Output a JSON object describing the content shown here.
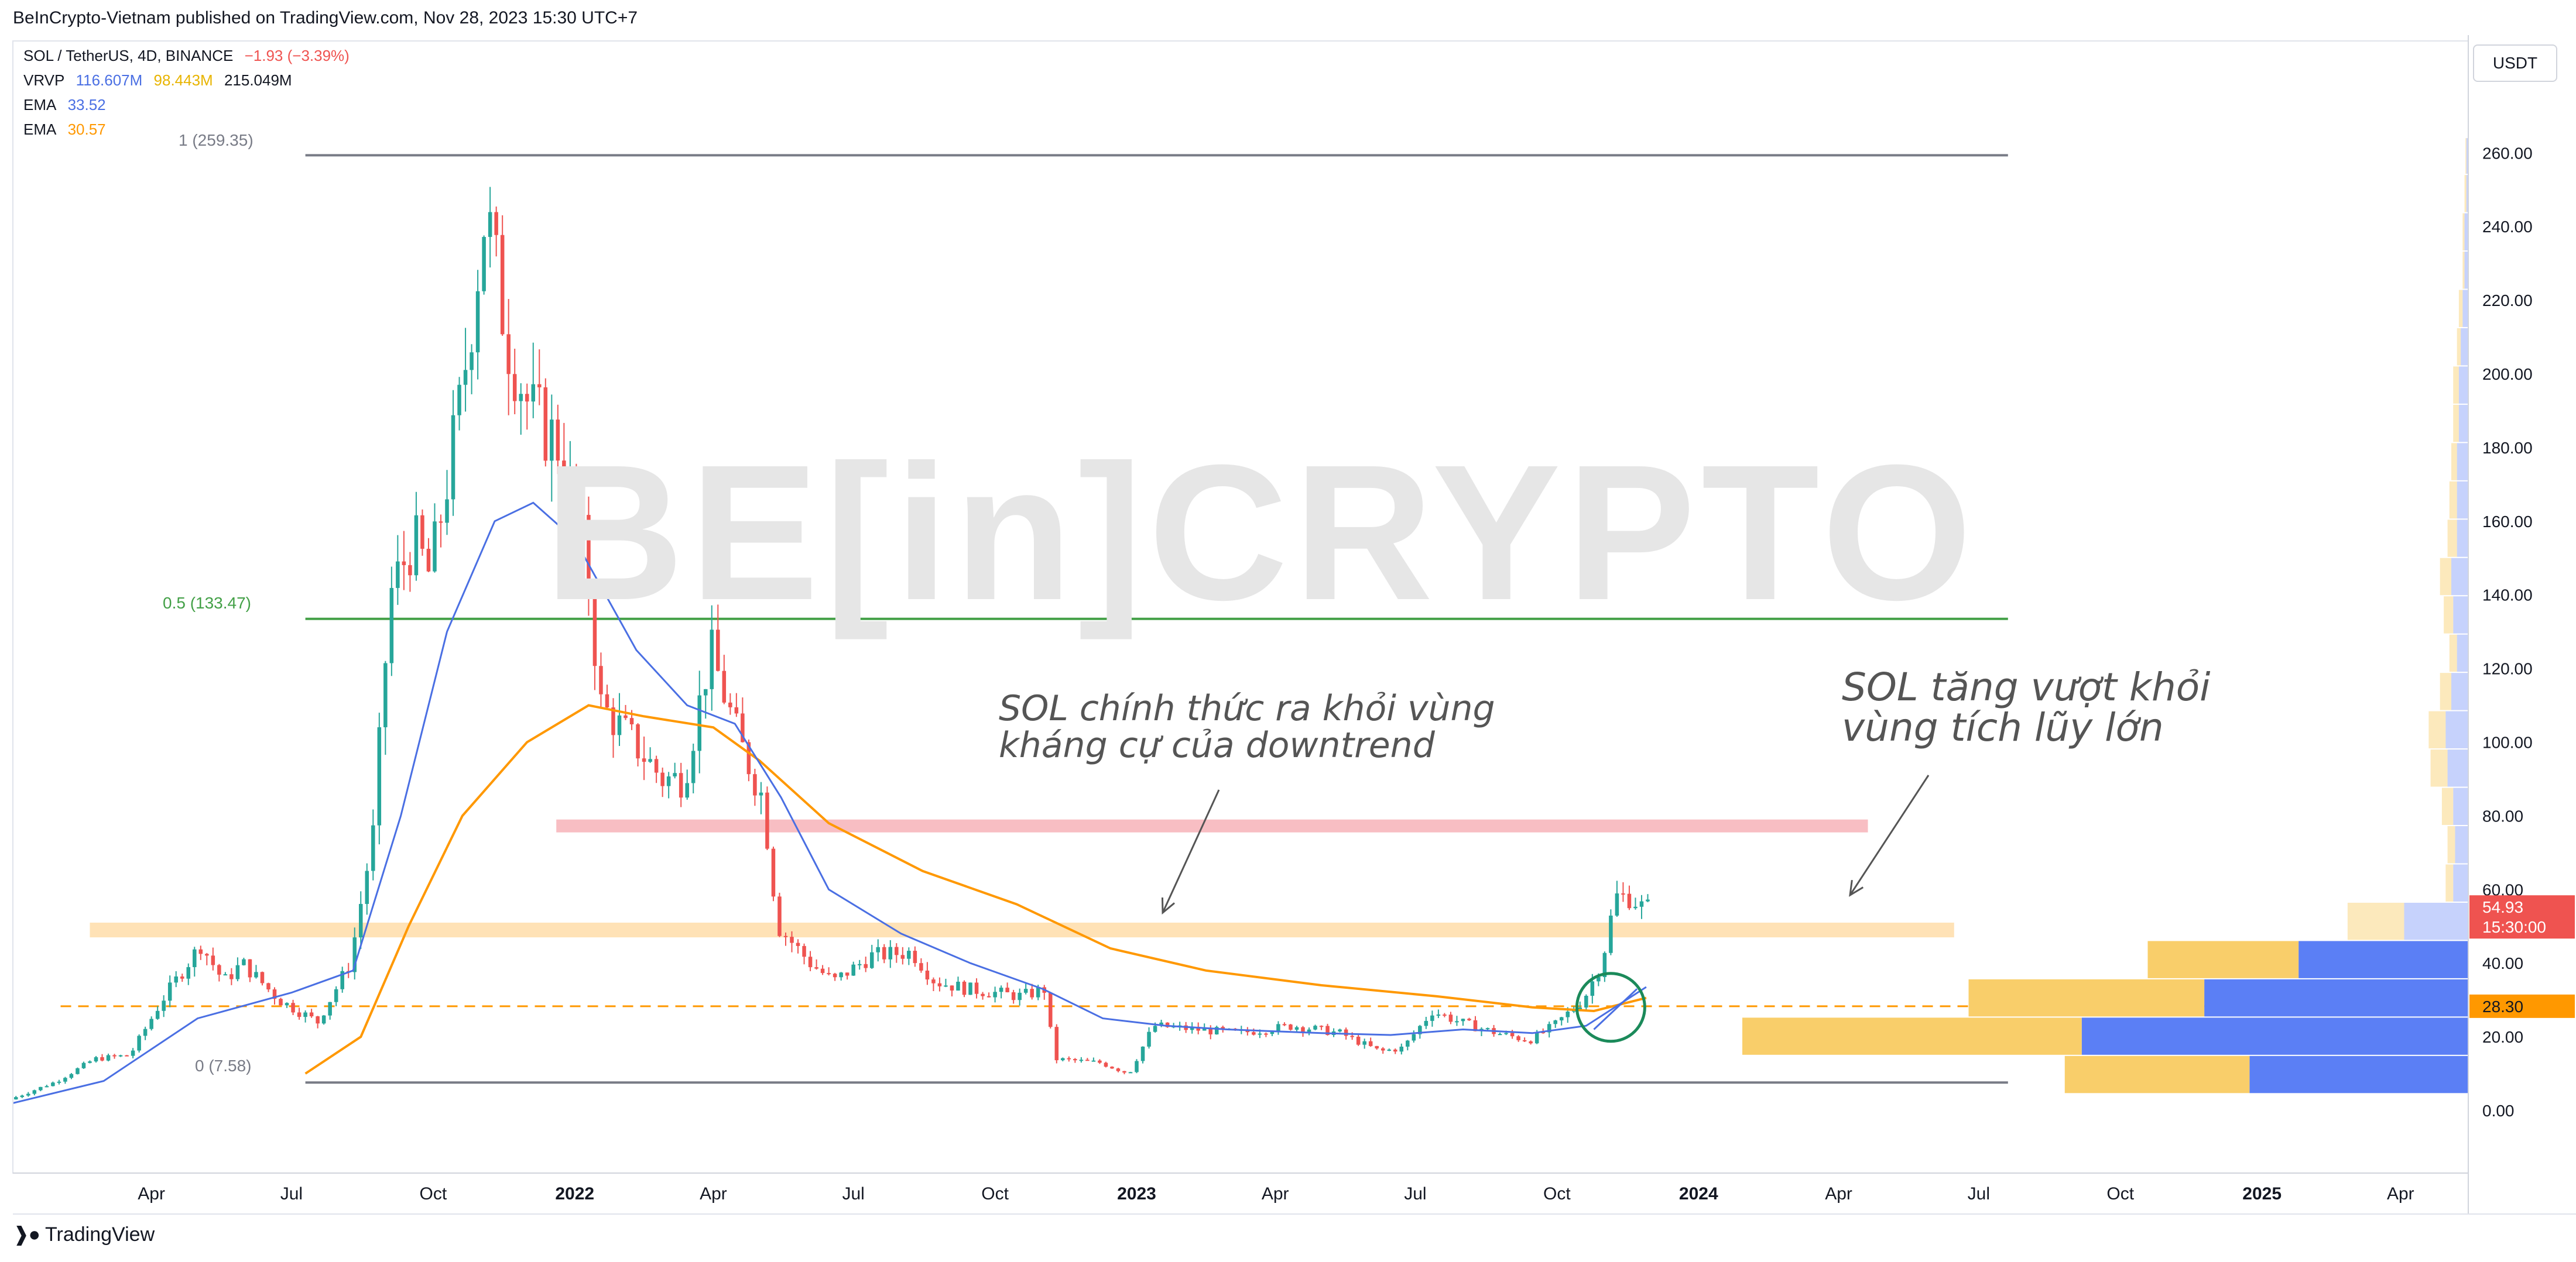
{
  "publisher_line": "BeInCrypto-Vietnam published on TradingView.com, Nov 28, 2023 15:30 UTC+7",
  "legend": {
    "symbol": "SOL / TetherUS, 4D, BINANCE",
    "change": "−1.93 (−3.39%)",
    "vrvp_label": "VRVP",
    "vrvp_v1": "116.607M",
    "vrvp_v2": "98.443M",
    "vrvp_v3": "215.049M",
    "ema1_label": "EMA",
    "ema1_value": "33.52",
    "ema2_label": "EMA",
    "ema2_value": "30.57"
  },
  "currency_button": "USDT",
  "watermark": "BE[in]CRYPTO",
  "footer_brand": "TradingView",
  "fib": {
    "top_label": "1 (259.35)",
    "mid_label": "0.5 (133.47)",
    "bottom_label": "0 (7.58)"
  },
  "annotations": {
    "left_line1": "SOL chính thức ra khỏi vùng",
    "left_line2": "kháng cự của downtrend",
    "right_line1": "SOL tăng vượt khỏi",
    "right_line2": "vùng tích lũy lớn"
  },
  "price_tags": {
    "last_price": "54.93",
    "countdown": "15:30:00",
    "level": "28.30"
  },
  "colors": {
    "up": "#26a69a",
    "down": "#ef5350",
    "ema_fast": "#4a6fe3",
    "ema_slow": "#ff9800",
    "fib": "#787b86",
    "fib_mid": "#43a047",
    "zone_pink": "#f8bbc0",
    "zone_orange": "#ffe0b2",
    "vol_up": "#5b7ff5",
    "vol_down": "#f9ce6a"
  },
  "chart_data": {
    "type": "candlestick",
    "title": "SOL / TetherUS, 4D, BINANCE",
    "ylabel": "USDT",
    "ylim": [
      -10,
      270
    ],
    "y_ticks": [
      0,
      20,
      40,
      60,
      80,
      100,
      120,
      140,
      160,
      180,
      200,
      220,
      240,
      260
    ],
    "y_tick_labels": [
      "0.00",
      "20.00",
      "40.00",
      "60.00",
      "80.00",
      "100.00",
      "120.00",
      "140.00",
      "160.00",
      "180.00",
      "200.00",
      "220.00",
      "240.00",
      "260.00"
    ],
    "x_ticks": [
      "2021-04-01",
      "2021-07-01",
      "2021-10-01",
      "2022-01-01",
      "2022-04-01",
      "2022-07-01",
      "2022-10-01",
      "2023-01-01",
      "2023-04-01",
      "2023-07-01",
      "2023-10-01",
      "2024-01-01",
      "2024-04-01",
      "2024-07-01",
      "2024-10-01",
      "2025-01-01",
      "2025-04-01"
    ],
    "x_tick_labels": [
      "Apr",
      "Jul",
      "Oct",
      "2022",
      "Apr",
      "Jul",
      "Oct",
      "2023",
      "Apr",
      "Jul",
      "Oct",
      "2024",
      "Apr",
      "Jul",
      "Oct",
      "2025",
      "Apr"
    ],
    "xlim": [
      "2021-01-01",
      "2025-05-15"
    ],
    "price_path": [
      [
        "2021-01-01",
        3.0
      ],
      [
        "2021-02-01",
        8.0
      ],
      [
        "2021-02-25",
        14.0
      ],
      [
        "2021-03-20",
        15.0
      ],
      [
        "2021-04-10",
        30.0
      ],
      [
        "2021-05-05",
        45.0
      ],
      [
        "2021-05-20",
        35.0
      ],
      [
        "2021-06-01",
        40.0
      ],
      [
        "2021-06-25",
        30.0
      ],
      [
        "2021-07-20",
        24.0
      ],
      [
        "2021-08-10",
        40.0
      ],
      [
        "2021-08-25",
        75.0
      ],
      [
        "2021-09-05",
        140.0
      ],
      [
        "2021-09-20",
        155.0
      ],
      [
        "2021-10-01",
        145.0
      ],
      [
        "2021-10-20",
        190.0
      ],
      [
        "2021-11-06",
        245.0
      ],
      [
        "2021-11-20",
        210.0
      ],
      [
        "2021-12-05",
        190.0
      ],
      [
        "2021-12-25",
        180.0
      ],
      [
        "2022-01-10",
        150.0
      ],
      [
        "2022-01-20",
        110.0
      ],
      [
        "2022-02-10",
        100.0
      ],
      [
        "2022-03-01",
        90.0
      ],
      [
        "2022-03-15",
        90.0
      ],
      [
        "2022-04-01",
        125.0
      ],
      [
        "2022-04-20",
        100.0
      ],
      [
        "2022-05-05",
        85.0
      ],
      [
        "2022-05-15",
        50.0
      ],
      [
        "2022-06-05",
        40.0
      ],
      [
        "2022-06-20",
        35.0
      ],
      [
        "2022-07-15",
        42.0
      ],
      [
        "2022-08-10",
        43.0
      ],
      [
        "2022-08-25",
        35.0
      ],
      [
        "2022-09-15",
        33.0
      ],
      [
        "2022-10-20",
        31.0
      ],
      [
        "2022-11-05",
        33.0
      ],
      [
        "2022-11-10",
        14.0
      ],
      [
        "2022-12-10",
        13.0
      ],
      [
        "2022-12-29",
        10.0
      ],
      [
        "2023-01-14",
        23.0
      ],
      [
        "2023-02-10",
        22.0
      ],
      [
        "2023-03-10",
        21.0
      ],
      [
        "2023-04-15",
        23.0
      ],
      [
        "2023-05-15",
        21.0
      ],
      [
        "2023-06-10",
        16.0
      ],
      [
        "2023-06-25",
        17.0
      ],
      [
        "2023-07-14",
        27.0
      ],
      [
        "2023-08-01",
        24.0
      ],
      [
        "2023-08-25",
        21.0
      ],
      [
        "2023-09-15",
        19.0
      ],
      [
        "2023-10-01",
        23.0
      ],
      [
        "2023-10-20",
        30.0
      ],
      [
        "2023-11-01",
        40.0
      ],
      [
        "2023-11-10",
        58.0
      ],
      [
        "2023-11-20",
        58.0
      ],
      [
        "2023-11-28",
        54.93
      ]
    ],
    "ema_fast_path": [
      [
        "2021-01-01",
        2.0
      ],
      [
        "2021-03-01",
        8.0
      ],
      [
        "2021-05-01",
        25.0
      ],
      [
        "2021-07-01",
        32.0
      ],
      [
        "2021-08-10",
        38.0
      ],
      [
        "2021-09-10",
        80.0
      ],
      [
        "2021-10-10",
        130.0
      ],
      [
        "2021-11-10",
        160.0
      ],
      [
        "2021-12-05",
        165.0
      ],
      [
        "2022-01-01",
        155.0
      ],
      [
        "2022-02-10",
        125.0
      ],
      [
        "2022-03-15",
        110.0
      ],
      [
        "2022-04-15",
        105.0
      ],
      [
        "2022-05-15",
        85.0
      ],
      [
        "2022-06-15",
        60.0
      ],
      [
        "2022-08-01",
        48.0
      ],
      [
        "2022-09-15",
        40.0
      ],
      [
        "2022-11-01",
        33.0
      ],
      [
        "2022-12-10",
        25.0
      ],
      [
        "2023-01-20",
        23.0
      ],
      [
        "2023-03-01",
        22.0
      ],
      [
        "2023-05-01",
        21.0
      ],
      [
        "2023-06-15",
        20.5
      ],
      [
        "2023-08-01",
        22.0
      ],
      [
        "2023-09-15",
        21.0
      ],
      [
        "2023-10-20",
        23.0
      ],
      [
        "2023-11-28",
        33.52
      ]
    ],
    "ema_slow_path": [
      [
        "2021-07-10",
        10.0
      ],
      [
        "2021-08-15",
        20.0
      ],
      [
        "2021-09-15",
        50.0
      ],
      [
        "2021-10-20",
        80.0
      ],
      [
        "2021-12-01",
        100.0
      ],
      [
        "2022-01-10",
        110.0
      ],
      [
        "2022-02-15",
        107.0
      ],
      [
        "2022-04-01",
        104.0
      ],
      [
        "2022-05-01",
        95.0
      ],
      [
        "2022-06-15",
        78.0
      ],
      [
        "2022-08-15",
        65.0
      ],
      [
        "2022-10-15",
        56.0
      ],
      [
        "2022-12-15",
        44.0
      ],
      [
        "2023-02-15",
        38.0
      ],
      [
        "2023-05-01",
        34.0
      ],
      [
        "2023-07-15",
        31.0
      ],
      [
        "2023-09-15",
        28.0
      ],
      [
        "2023-10-25",
        27.0
      ],
      [
        "2023-11-28",
        30.57
      ]
    ],
    "fib_levels": [
      {
        "ratio": "1",
        "value": 259.35
      },
      {
        "ratio": "0.5",
        "value": 133.47
      },
      {
        "ratio": "0",
        "value": 7.58
      }
    ],
    "fib_x_range": [
      "2021-07-10",
      "2024-07-20"
    ],
    "zones": [
      {
        "name": "resistance-zone",
        "y0": 47.0,
        "y1": 51.0,
        "x0": "2021-02-20",
        "x1": "2024-06-15"
      },
      {
        "name": "downtrend-resistance",
        "y0": 75.5,
        "y1": 79.0,
        "x0": "2021-12-20",
        "x1": "2024-04-20"
      }
    ],
    "dashed_level": {
      "value": 28.3,
      "x0": "2021-02-01",
      "x1": "2024-02-01"
    },
    "circle": {
      "x": "2023-11-05",
      "y": 28.0
    },
    "volume_profile": [
      {
        "lo": 4.4,
        "hi": 14.8,
        "up": 116,
        "down": 98
      },
      {
        "lo": 14.8,
        "hi": 25.2,
        "up": 205,
        "down": 180
      },
      {
        "lo": 25.2,
        "hi": 35.6,
        "up": 140,
        "down": 125
      },
      {
        "lo": 35.6,
        "hi": 46.0,
        "up": 90,
        "down": 80
      },
      {
        "lo": 46.0,
        "hi": 56.4,
        "up": 34,
        "down": 30
      },
      {
        "lo": 56.4,
        "hi": 66.8,
        "up": 8,
        "down": 4
      },
      {
        "lo": 66.8,
        "hi": 77.2,
        "up": 7,
        "down": 4
      },
      {
        "lo": 77.2,
        "hi": 87.6,
        "up": 8,
        "down": 6
      },
      {
        "lo": 87.6,
        "hi": 98.0,
        "up": 11,
        "down": 9
      },
      {
        "lo": 98.0,
        "hi": 108.4,
        "up": 12,
        "down": 9
      },
      {
        "lo": 108.4,
        "hi": 118.8,
        "up": 9,
        "down": 6
      },
      {
        "lo": 118.8,
        "hi": 129.2,
        "up": 6,
        "down": 4
      },
      {
        "lo": 129.2,
        "hi": 139.6,
        "up": 8,
        "down": 5
      },
      {
        "lo": 139.6,
        "hi": 150.0,
        "up": 9,
        "down": 6
      },
      {
        "lo": 150.0,
        "hi": 160.4,
        "up": 6,
        "down": 5
      },
      {
        "lo": 160.4,
        "hi": 170.8,
        "up": 6,
        "down": 4
      },
      {
        "lo": 170.8,
        "hi": 181.2,
        "up": 6,
        "down": 3
      },
      {
        "lo": 181.2,
        "hi": 191.6,
        "up": 5,
        "down": 3
      },
      {
        "lo": 191.6,
        "hi": 202.0,
        "up": 5,
        "down": 3
      },
      {
        "lo": 202.0,
        "hi": 212.4,
        "up": 4,
        "down": 2
      },
      {
        "lo": 212.4,
        "hi": 222.8,
        "up": 3,
        "down": 2
      },
      {
        "lo": 222.8,
        "hi": 233.2,
        "up": 2,
        "down": 1
      },
      {
        "lo": 233.2,
        "hi": 243.6,
        "up": 2,
        "down": 1
      },
      {
        "lo": 243.6,
        "hi": 254.0,
        "up": 1,
        "down": 1
      },
      {
        "lo": 254.0,
        "hi": 264.0,
        "up": 1,
        "down": 0.5
      }
    ]
  }
}
